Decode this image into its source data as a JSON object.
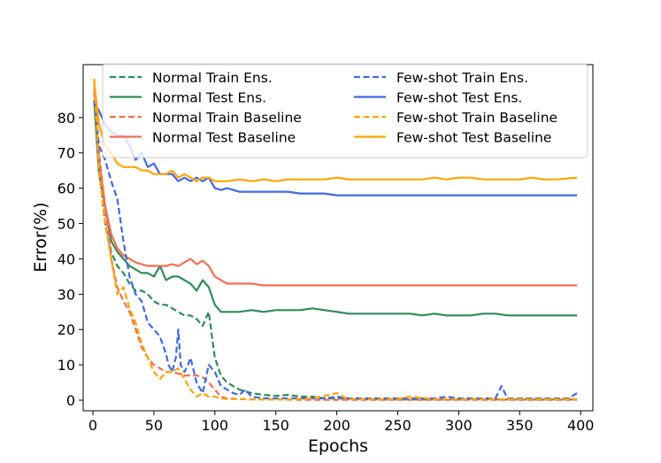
{
  "chart_data": {
    "type": "line",
    "title": "",
    "xlabel": "Epochs",
    "ylabel": "Error(%)",
    "xlim": [
      -8,
      410
    ],
    "ylim": [
      -3,
      95
    ],
    "xticks": [
      0,
      50,
      100,
      150,
      200,
      250,
      300,
      350,
      400
    ],
    "yticks": [
      0,
      10,
      20,
      30,
      40,
      50,
      60,
      70,
      80
    ],
    "grid": false,
    "legend_position": "top",
    "legend_columns": 2,
    "series": [
      {
        "name": "Normal Train Ens.",
        "color": "#2e8b57",
        "dash": "dashed",
        "x": [
          1,
          5,
          10,
          15,
          20,
          25,
          30,
          35,
          40,
          45,
          50,
          55,
          60,
          65,
          70,
          75,
          80,
          85,
          90,
          95,
          100,
          105,
          110,
          115,
          120,
          125,
          130,
          140,
          150,
          160,
          170,
          180,
          190,
          200,
          220,
          240,
          260,
          280,
          300,
          320,
          340,
          360,
          380,
          397
        ],
        "values": [
          88,
          65,
          50,
          42,
          38,
          36,
          33,
          31,
          31,
          30,
          28,
          27,
          27,
          26,
          25,
          24,
          24,
          23,
          21,
          25,
          12,
          7,
          5,
          4,
          3,
          2.5,
          2,
          1.5,
          1.2,
          1.5,
          1,
          1,
          0.5,
          0.5,
          0.3,
          0.2,
          0.2,
          0.2,
          0.2,
          0.3,
          0.2,
          0.2,
          0.2,
          0.2
        ]
      },
      {
        "name": "Normal Test Ens.",
        "color": "#2e8b57",
        "dash": "solid",
        "x": [
          1,
          5,
          10,
          15,
          20,
          25,
          30,
          35,
          40,
          45,
          50,
          55,
          60,
          65,
          70,
          75,
          80,
          85,
          90,
          95,
          100,
          105,
          110,
          120,
          130,
          140,
          150,
          160,
          170,
          180,
          190,
          200,
          210,
          220,
          230,
          240,
          250,
          260,
          270,
          280,
          290,
          300,
          310,
          320,
          330,
          340,
          350,
          360,
          370,
          380,
          397
        ],
        "values": [
          85,
          64,
          55,
          45,
          42,
          40,
          38,
          37,
          36,
          36,
          35,
          38,
          34,
          35,
          35,
          34,
          33,
          31,
          34,
          32,
          27,
          25,
          25,
          25,
          25.5,
          25,
          25.5,
          25.5,
          25.5,
          26,
          25.5,
          25,
          24.5,
          24.5,
          24.5,
          24.5,
          24.5,
          24.5,
          24,
          24.5,
          24,
          24,
          24,
          24.5,
          24.5,
          24,
          24,
          24,
          24,
          24,
          24
        ]
      },
      {
        "name": "Normal Train Baseline",
        "color": "#f46d55",
        "dash": "dashed",
        "x": [
          1,
          5,
          10,
          15,
          20,
          25,
          30,
          35,
          40,
          45,
          50,
          55,
          60,
          65,
          70,
          75,
          80,
          85,
          90,
          95,
          100,
          105,
          110,
          120,
          130,
          140,
          150,
          170,
          200,
          250,
          300,
          350,
          397
        ],
        "values": [
          90,
          70,
          55,
          40,
          32,
          28,
          25,
          20,
          15,
          12,
          10,
          9,
          8,
          8,
          7.5,
          7,
          7,
          7,
          6.5,
          5,
          3,
          1,
          0.5,
          0.3,
          0.2,
          0.2,
          0.2,
          0.1,
          0.1,
          0.1,
          0.1,
          0.1,
          0.1
        ]
      },
      {
        "name": "Normal Test Baseline",
        "color": "#f46d55",
        "dash": "solid",
        "x": [
          1,
          5,
          10,
          15,
          20,
          25,
          30,
          35,
          40,
          45,
          50,
          55,
          60,
          65,
          70,
          75,
          80,
          85,
          90,
          95,
          100,
          105,
          110,
          120,
          130,
          140,
          150,
          160,
          170,
          180,
          190,
          200,
          220,
          240,
          260,
          280,
          300,
          320,
          340,
          360,
          380,
          397
        ],
        "values": [
          88,
          68,
          55,
          47,
          43,
          41,
          40,
          39,
          38.5,
          38,
          38,
          38,
          38,
          38.5,
          38,
          39,
          40,
          38.5,
          39.5,
          38,
          35,
          34,
          33,
          33,
          33,
          32.5,
          32.5,
          32.5,
          32.5,
          32.5,
          32.5,
          32.5,
          32.5,
          32.5,
          32.5,
          32.5,
          32.5,
          32.5,
          32.5,
          32.5,
          32.5,
          32.5
        ]
      },
      {
        "name": "Few-shot Train Ens.",
        "color": "#4169e1",
        "dash": "dashed",
        "x": [
          1,
          5,
          10,
          15,
          20,
          25,
          30,
          35,
          40,
          45,
          50,
          55,
          60,
          62,
          65,
          68,
          70,
          72,
          75,
          78,
          80,
          85,
          90,
          95,
          100,
          105,
          110,
          115,
          120,
          125,
          130,
          140,
          150,
          170,
          190,
          200,
          210,
          220,
          250,
          280,
          290,
          300,
          330,
          335,
          340,
          350,
          370,
          390,
          397
        ],
        "values": [
          85,
          72,
          68,
          62,
          57,
          45,
          35,
          30,
          28,
          22,
          20,
          18,
          13,
          10,
          8,
          12,
          20,
          10,
          8,
          10,
          12,
          5,
          2,
          10,
          8,
          4,
          3,
          2,
          1.5,
          3,
          1,
          0.5,
          0.5,
          0.5,
          0.5,
          1,
          0.5,
          0.5,
          0.5,
          0.5,
          1,
          0.5,
          0.5,
          4,
          0.5,
          0.5,
          0.5,
          0.5,
          2
        ]
      },
      {
        "name": "Few-shot Test Ens.",
        "color": "#4169e1",
        "dash": "solid",
        "x": [
          1,
          5,
          10,
          15,
          20,
          25,
          30,
          35,
          40,
          45,
          50,
          55,
          60,
          65,
          70,
          75,
          80,
          85,
          90,
          95,
          100,
          105,
          110,
          120,
          130,
          140,
          150,
          160,
          170,
          180,
          190,
          200,
          210,
          220,
          230,
          240,
          250,
          260,
          270,
          280,
          290,
          300,
          310,
          320,
          330,
          340,
          350,
          360,
          370,
          380,
          397
        ],
        "values": [
          84,
          82,
          78,
          76,
          75,
          75,
          72,
          68,
          70,
          66,
          67,
          64,
          64,
          64,
          62,
          63,
          62,
          63,
          62,
          63,
          60,
          59.5,
          60,
          59,
          59,
          59,
          59,
          59,
          58.5,
          58.5,
          58.5,
          58,
          58,
          58,
          58,
          58,
          58,
          58,
          58,
          58,
          58,
          58,
          58,
          58,
          58,
          58,
          58,
          58,
          58,
          58,
          58
        ]
      },
      {
        "name": "Few-shot Train Baseline",
        "color": "#ffa500",
        "dash": "dashed",
        "x": [
          1,
          5,
          10,
          15,
          20,
          25,
          30,
          35,
          40,
          45,
          50,
          55,
          60,
          65,
          70,
          75,
          80,
          85,
          90,
          95,
          100,
          105,
          110,
          120,
          140,
          160,
          180,
          200,
          205,
          210,
          230,
          250,
          260,
          280,
          300,
          320,
          350,
          380,
          397
        ],
        "values": [
          91,
          65,
          50,
          40,
          30,
          32,
          26,
          22,
          16,
          12,
          8,
          6,
          8,
          8,
          9,
          6,
          3,
          1,
          2,
          1,
          1,
          0.5,
          0.3,
          0.3,
          0.2,
          0.2,
          0.5,
          2,
          1,
          0.3,
          0.3,
          0.3,
          1,
          0.3,
          0.3,
          0.3,
          0.3,
          0.3,
          0.3
        ]
      },
      {
        "name": "Few-shot Test Baseline",
        "color": "#ffa500",
        "dash": "solid",
        "x": [
          1,
          5,
          10,
          15,
          20,
          25,
          30,
          35,
          40,
          45,
          50,
          55,
          60,
          65,
          70,
          75,
          80,
          85,
          90,
          95,
          100,
          105,
          110,
          120,
          130,
          140,
          150,
          160,
          170,
          180,
          190,
          200,
          210,
          220,
          230,
          240,
          250,
          260,
          270,
          280,
          290,
          300,
          310,
          320,
          330,
          340,
          350,
          360,
          370,
          380,
          397
        ],
        "values": [
          90,
          78,
          72,
          70,
          67,
          66,
          66,
          66,
          65,
          65,
          64,
          64,
          64,
          65,
          63,
          64,
          63,
          62,
          63,
          63,
          62,
          62,
          62,
          62.5,
          62,
          62.5,
          62,
          62.5,
          62.5,
          62.5,
          62.5,
          63,
          62.5,
          62.5,
          62.5,
          62.5,
          62.5,
          62.5,
          62.5,
          63,
          62.5,
          63,
          63,
          62.5,
          62.5,
          62.5,
          62.5,
          63,
          62.5,
          62.5,
          63
        ]
      }
    ]
  }
}
